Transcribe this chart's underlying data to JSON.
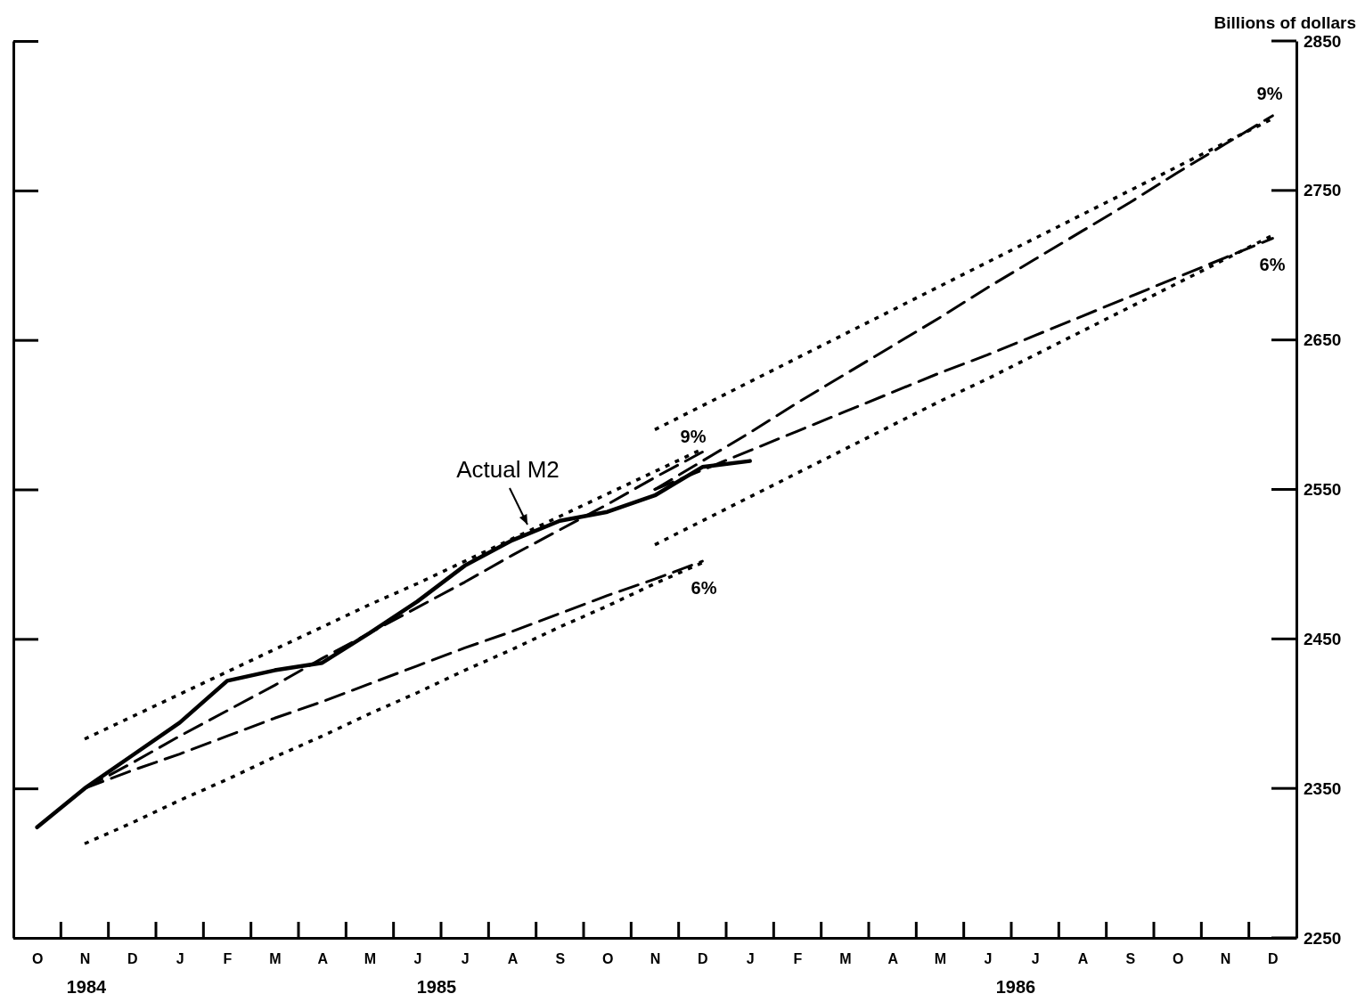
{
  "chart_data": {
    "type": "line",
    "ylabel": "Billions of dollars",
    "ylim": [
      2250,
      2850
    ],
    "yticks": [
      2250,
      2350,
      2450,
      2550,
      2650,
      2750,
      2850
    ],
    "categories": [
      "O",
      "N",
      "D",
      "J",
      "F",
      "M",
      "A",
      "M",
      "J",
      "J",
      "A",
      "S",
      "O",
      "N",
      "D",
      "J",
      "F",
      "M",
      "A",
      "M",
      "J",
      "J",
      "A",
      "S",
      "O",
      "N",
      "D"
    ],
    "grid": false,
    "series": [
      {
        "color": "#000000",
        "line_style": "solid",
        "values": [
          2324,
          2350,
          2372,
          2394,
          2422,
          2429,
          2434,
          2454,
          2475,
          2499,
          2516,
          2529,
          2535,
          2546,
          2565,
          2569,
          null,
          null,
          null,
          null,
          null,
          null,
          null,
          null,
          null,
          null,
          null
        ]
      },
      {
        "color": "#000000",
        "line_style": "dashed",
        "values": [
          null,
          2350,
          2367,
          2385,
          2402,
          2419,
          2437,
          2454,
          2471,
          2488,
          2506,
          2523,
          2540,
          2558,
          2575,
          null,
          null,
          null,
          null,
          null,
          null,
          null,
          null,
          null,
          null,
          null,
          null
        ]
      },
      {
        "color": "#000000",
        "line_style": "dashed",
        "values": [
          null,
          2350,
          2362,
          2373,
          2385,
          2397,
          2408,
          2420,
          2432,
          2444,
          2455,
          2467,
          2479,
          2490,
          2502,
          null,
          null,
          null,
          null,
          null,
          null,
          null,
          null,
          null,
          null,
          null,
          null
        ]
      },
      {
        "color": "#000000",
        "line_style": "dotted",
        "values": [
          null,
          2383,
          2398,
          2413,
          2428,
          2443,
          2458,
          2473,
          2487,
          2502,
          2517,
          2532,
          2547,
          2562,
          2577,
          null,
          null,
          null,
          null,
          null,
          null,
          null,
          null,
          null,
          null,
          null,
          null
        ]
      },
      {
        "color": "#000000",
        "line_style": "dotted",
        "values": [
          null,
          2313,
          2327,
          2342,
          2356,
          2371,
          2385,
          2400,
          2414,
          2429,
          2443,
          2458,
          2472,
          2487,
          2501,
          null,
          null,
          null,
          null,
          null,
          null,
          null,
          null,
          null,
          null,
          null,
          null
        ]
      },
      {
        "color": "#000000",
        "line_style": "dashed",
        "values": [
          null,
          null,
          null,
          null,
          null,
          null,
          null,
          null,
          null,
          null,
          null,
          null,
          null,
          2550,
          2569,
          2588,
          2608,
          2627,
          2646,
          2665,
          2685,
          2704,
          2723,
          2742,
          2762,
          2781,
          2800
        ]
      },
      {
        "color": "#000000",
        "line_style": "dashed",
        "values": [
          null,
          null,
          null,
          null,
          null,
          null,
          null,
          null,
          null,
          null,
          null,
          null,
          null,
          2550,
          2563,
          2576,
          2589,
          2602,
          2615,
          2628,
          2640,
          2653,
          2666,
          2679,
          2692,
          2705,
          2718
        ]
      },
      {
        "color": "#000000",
        "line_style": "dotted",
        "values": [
          null,
          null,
          null,
          null,
          null,
          null,
          null,
          null,
          null,
          null,
          null,
          null,
          null,
          2590,
          2606,
          2622,
          2638,
          2654,
          2670,
          2686,
          2702,
          2718,
          2734,
          2750,
          2766,
          2782,
          2798
        ]
      },
      {
        "color": "#000000",
        "line_style": "dotted",
        "values": [
          null,
          null,
          null,
          null,
          null,
          null,
          null,
          null,
          null,
          null,
          null,
          null,
          null,
          2513,
          2529,
          2545,
          2561,
          2577,
          2593,
          2609,
          2624,
          2640,
          2656,
          2672,
          2688,
          2704,
          2720
        ]
      }
    ],
    "annotations": [
      "Actual M2",
      "9%",
      "6%",
      "9%",
      "6%",
      "1984",
      "1985",
      "1986"
    ]
  }
}
